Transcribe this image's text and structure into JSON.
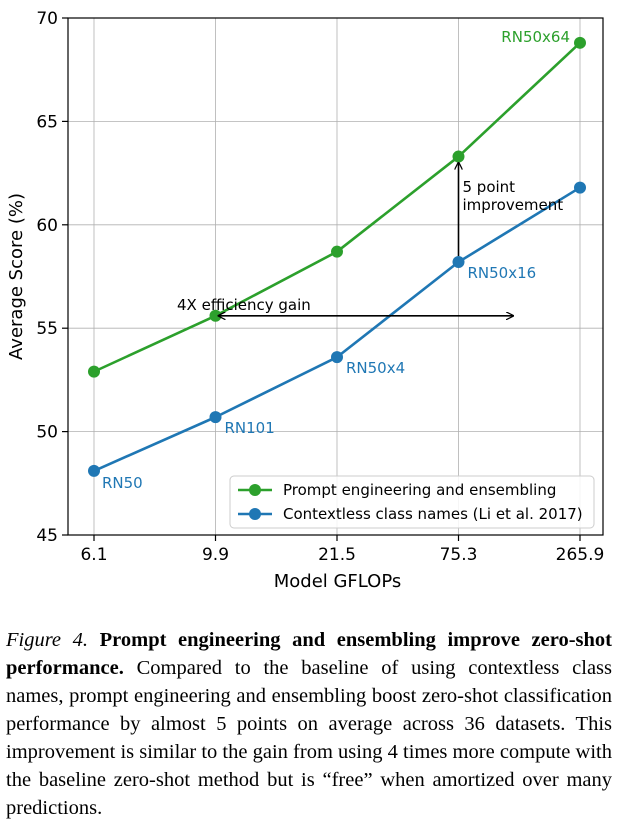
{
  "chart_data": {
    "type": "line",
    "categories": [
      "6.1",
      "9.9",
      "21.5",
      "75.3",
      "265.9"
    ],
    "xlabel": "Model GFLOPs",
    "ylabel": "Average Score (%)",
    "ylim": [
      45,
      70
    ],
    "yticks": [
      45,
      50,
      55,
      60,
      65,
      70
    ],
    "grid": true,
    "legend_position": "lower-right",
    "series": [
      {
        "name": "Prompt engineering and ensembling",
        "color": "#2ca02c",
        "values": [
          52.9,
          55.6,
          58.7,
          63.3,
          68.8
        ],
        "point_labels": [
          "",
          "",
          "",
          "",
          "RN50x64"
        ]
      },
      {
        "name": "Contextless class names (Li et al. 2017)",
        "color": "#1f77b4",
        "values": [
          48.1,
          50.7,
          53.6,
          58.2,
          61.8
        ],
        "point_labels": [
          "RN50",
          "RN101",
          "RN50x4",
          "RN50x16",
          ""
        ]
      }
    ],
    "annotations": [
      {
        "text": "4X efficiency gain",
        "from": [
          1,
          55.6
        ],
        "to": [
          3.45,
          55.6
        ]
      },
      {
        "text_lines": [
          "5 point",
          "improvement"
        ],
        "from": [
          3,
          58.2
        ],
        "to": [
          3,
          63.3
        ]
      }
    ]
  },
  "caption": {
    "label": "Figure 4.",
    "bold": "Prompt engineering and ensembling improve zero-shot performance.",
    "text": "Compared to the baseline of using contextless class names, prompt engineering and ensembling boost zero-shot classification performance by almost 5 points on average across 36 datasets. This improvement is similar to the gain from using 4 times more compute with the baseline zero-shot method but is “free” when amortized over many predictions."
  }
}
